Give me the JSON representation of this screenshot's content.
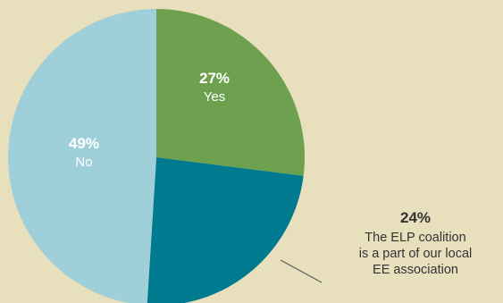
{
  "chart_data": {
    "type": "pie",
    "title": "",
    "slices": [
      {
        "label": "Yes",
        "value": 27,
        "value_label": "27%",
        "color": "#6ea14f",
        "text_color": "#ffffff"
      },
      {
        "label": "The ELP coalition is a part of our local EE association",
        "value": 24,
        "value_label": "24%",
        "color": "#007a8e",
        "text_color": "#333333"
      },
      {
        "label": "No",
        "value": 49,
        "value_label": "49%",
        "color": "#9fd0d9",
        "text_color": "#ffffff"
      }
    ],
    "start_angle_deg": 0,
    "direction": "clockwise"
  },
  "annotations": {
    "yes_pct": "27%",
    "yes_label": "Yes",
    "no_pct": "49%",
    "no_label": "No",
    "elp_pct": "24%",
    "elp_line1": "The ELP coalition",
    "elp_line2": "is a part of our local",
    "elp_line3": "EE association"
  },
  "colors": {
    "background": "#e8dfbd",
    "leader_line": "#555555"
  }
}
